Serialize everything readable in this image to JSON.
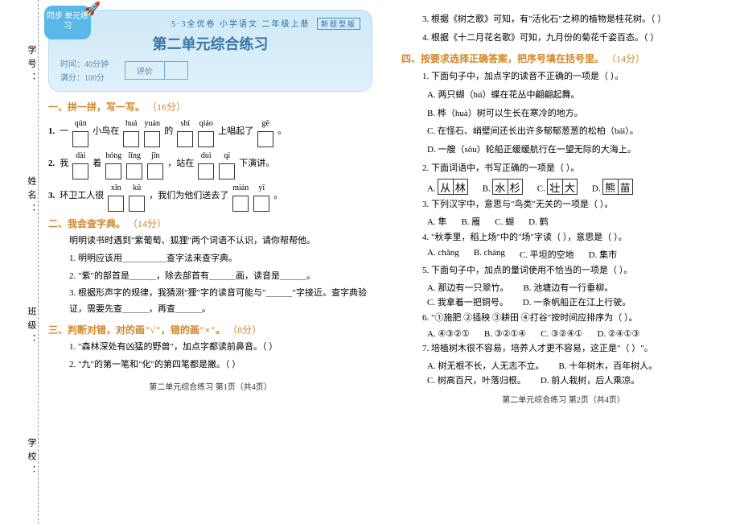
{
  "margin": [
    "学号：",
    "姓名：",
    "班级：",
    "学校："
  ],
  "header": {
    "badge": "同步\n单元练习",
    "topline": "5·3全优卷  小学语文  二年级上册",
    "tag": "新题型版",
    "title": "第二单元综合练习",
    "time": "时间：40分钟",
    "score": "满分：100分",
    "eval_label": "评价",
    "eval_blank": " "
  },
  "s1": {
    "title": "一、拼一拼，写一写。",
    "pts": "（16分）",
    "rows": [
      {
        "num": "1.",
        "pre": "一",
        "groups": [
          [
            "qún",
            1
          ]
        ],
        "mid1": "小鸟在",
        "groups2": [
          [
            "huá",
            1
          ],
          [
            "yuán",
            1
          ]
        ],
        "mid2": "的",
        "groups3": [
          [
            "shí",
            1
          ],
          [
            "qiáo",
            1
          ]
        ],
        "mid3": "上唱起了",
        "groups4": [
          [
            "gē",
            1
          ]
        ],
        "end": "。"
      },
      {
        "num": "2.",
        "pre": "我",
        "groups": [
          [
            "dài",
            1
          ]
        ],
        "mid1": "着",
        "groups2": [
          [
            "hóng",
            1
          ],
          [
            "lǐng",
            1
          ],
          [
            "jīn",
            1
          ]
        ],
        "mid2": "，站在",
        "groups3": [
          [
            "duì",
            1
          ],
          [
            "qí",
            1
          ]
        ],
        "mid3": "下演讲。",
        "groups4": [],
        "end": ""
      },
      {
        "num": "3.",
        "pre": "环卫工人很",
        "groups": [
          [
            "xīn",
            1
          ],
          [
            "kǔ",
            1
          ]
        ],
        "mid1": "，我们为他们送去了",
        "groups2": [
          [
            "mián",
            1
          ],
          [
            "yī",
            1
          ]
        ],
        "mid2": "。",
        "groups3": [],
        "mid3": "",
        "groups4": [],
        "end": ""
      }
    ]
  },
  "s2": {
    "title": "二、我会查字典。",
    "pts": "（14分）",
    "intro": "明明读书时遇到\"紫葡萄、狐狸\"两个词语不认识，请你帮帮他。",
    "items": [
      "1. 明明应该用＿＿＿＿＿查字法来查字典。",
      "2. \"紫\"的部首是＿＿＿，除去部首有＿＿＿画，读音是＿＿＿。",
      "3. 根据形声字的规律，我猜测\"狸\"字的读音可能与\"＿＿＿\"字接近。查字典验证，需要先查＿＿＿，再查＿＿＿。"
    ]
  },
  "s3": {
    "title": "三、判断对错，对的画\"√\"，错的画\"×\"。",
    "pts": "（8分）",
    "items": [
      "1. \"森林深处有凶猛的野兽\"，加点字都读前鼻音。（    ）",
      "2. \"九\"的第一笔和\"化\"的第四笔都是撇。（    ）"
    ]
  },
  "footer_left": "第二单元综合练习    第1页（共4页）",
  "s3b": {
    "items": [
      "3. 根据《树之歌》可知，有\"活化石\"之称的植物是桂花树。（    ）",
      "4. 根据《十二月花名歌》可知，九月份的菊花千姿百态。（    ）"
    ]
  },
  "s4": {
    "title": "四、按要求选择正确答案，把序号填在括号里。",
    "pts": "（14分）",
    "q1": {
      "stem": "1. 下面句子中，加点字的读音不正确的一项是（    ）。",
      "opts": [
        "A. 两只蝴（hú）蝶在花丛中翩翩起舞。",
        "B. 桦（huà）树可以生长在寒冷的地方。",
        "C. 在怪石、峭壁间还长出许多郁郁葱葱的松柏（bái）。",
        "D. 一艘（sōu）轮船正缓缓航行在一望无际的大海上。"
      ]
    },
    "q2": {
      "stem": "2. 下面词语中，书写正确的一项是（    ）。",
      "opts": [
        {
          "l": "A.",
          "c": [
            "从",
            "林"
          ]
        },
        {
          "l": "B.",
          "c": [
            "水",
            "杉"
          ]
        },
        {
          "l": "C.",
          "c": [
            "壮",
            "大"
          ]
        },
        {
          "l": "D.",
          "c": [
            "熊",
            "苗"
          ]
        }
      ]
    },
    "q3": {
      "stem": "3. 下列汉字中，意思与\"鸟类\"无关的一项是（    ）。",
      "opts": [
        "A. 隼",
        "B. 雁",
        "C. 蝴",
        "D. 鹤"
      ]
    },
    "q4": {
      "stem": "4. \"秋季里，稻上场\"中的\"场\"字读（    ），意思是（    ）。",
      "opts": [
        "A. chǎng",
        "B. cháng",
        "C. 平坦的空地",
        "D. 集市"
      ]
    },
    "q5": {
      "stem": "5. 下面句子中，加点的量词使用不恰当的一项是（    ）。",
      "opts": [
        "A. 那边有一只翠竹。",
        "B. 池塘边有一行垂柳。",
        "C. 我拿着一把铜号。",
        "D. 一条帆船正在江上行驶。"
      ]
    },
    "q6": {
      "stem": "6. \"①施肥 ②插秧 ③耕田 ④打谷\"按时间应排序为（    ）。",
      "opts": [
        "A. ④③②①",
        "B. ③②①④",
        "C. ③②④①",
        "D. ②④①③"
      ]
    },
    "q7": {
      "stem": "7. 培植树木很不容易，培养人才更不容易，这正是\"（    ）\"。",
      "opts": [
        "A. 树无根不长，人无志不立。",
        "B. 十年树木，百年树人。",
        "C. 树高百尺，叶落归根。",
        "D. 前人栽树，后人乘凉。"
      ]
    }
  },
  "footer_right": "第二单元综合练习    第2页（共4页）"
}
